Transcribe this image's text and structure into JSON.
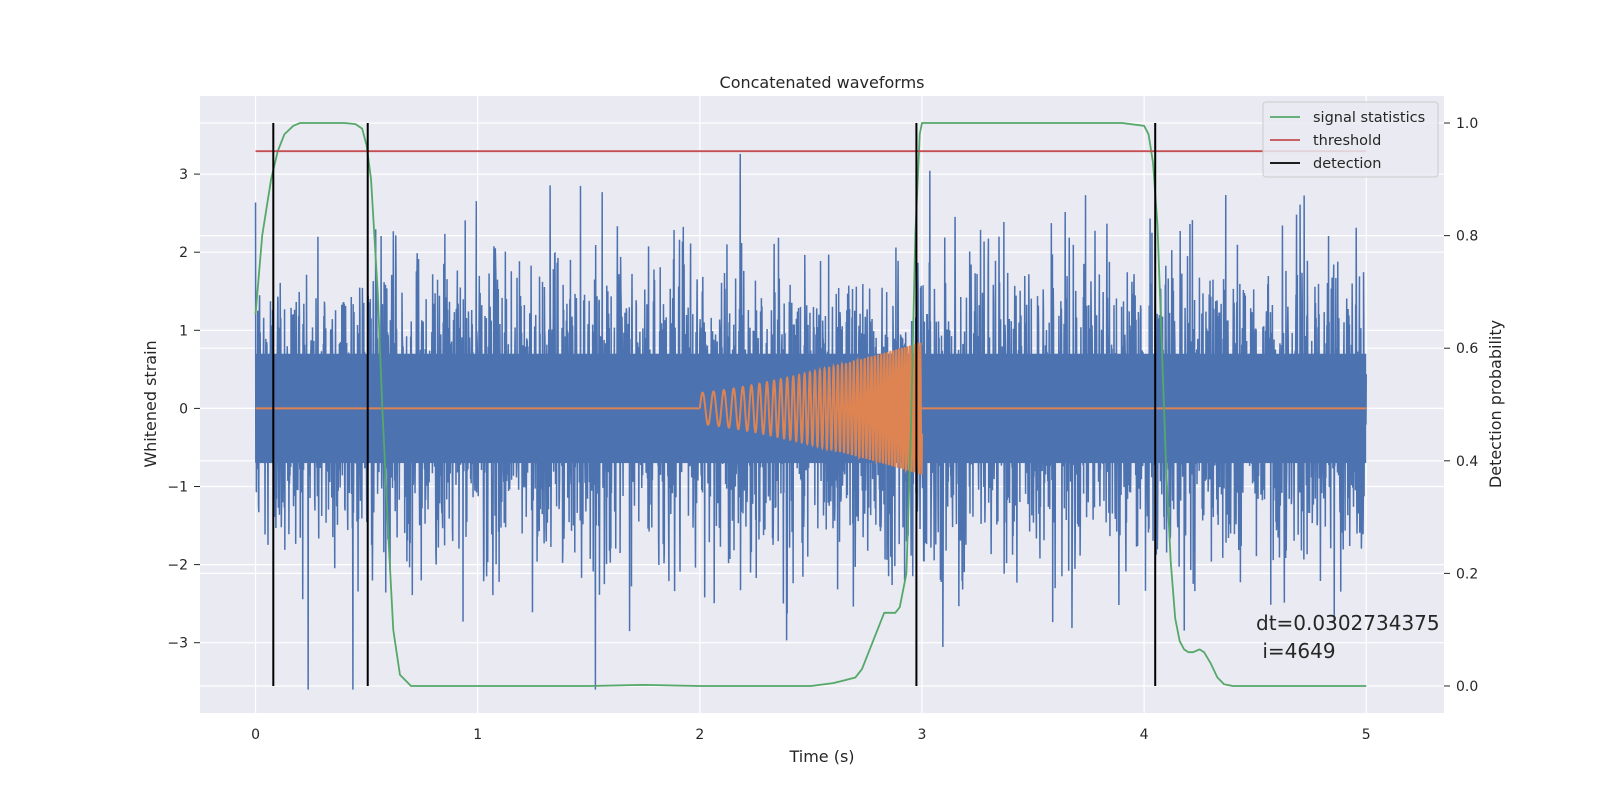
{
  "chart_data": {
    "type": "line",
    "title": "Concatenated waveforms",
    "xlabel": "Time (s)",
    "ylabel": "Whitened strain",
    "y2label": "Detection probability",
    "xlim": [
      -0.25,
      5.35
    ],
    "ylim": [
      -3.9,
      4.0
    ],
    "y2lim": [
      -0.048,
      1.048
    ],
    "x_ticks": [
      0,
      1,
      2,
      3,
      4,
      5
    ],
    "y_ticks": [
      -3,
      -2,
      -1,
      0,
      1,
      2,
      3
    ],
    "y2_ticks": [
      0.0,
      0.2,
      0.4,
      0.6,
      0.8,
      1.0
    ],
    "x_tick_labels": [
      "0",
      "1",
      "2",
      "3",
      "4",
      "5"
    ],
    "y_tick_labels": [
      "−3",
      "−2",
      "−1",
      "0",
      "1",
      "2",
      "3"
    ],
    "y2_tick_labels": [
      "0.0",
      "0.2",
      "0.4",
      "0.6",
      "0.8",
      "1.0"
    ],
    "grid": true,
    "legend_position": "top-right",
    "legend": [
      {
        "label": "signal statistics",
        "color": "#55a868"
      },
      {
        "label": "threshold",
        "color": "#c44e52"
      },
      {
        "label": "detection",
        "color": "#000000"
      }
    ],
    "series": [
      {
        "role": "noise",
        "color": "#4c72b0",
        "x_range": [
          0,
          5
        ],
        "core_amplitude": 0.7,
        "max_amplitude": 3.65,
        "min_amplitude": -3.6
      },
      {
        "role": "chirp",
        "color": "#dd8452",
        "flat_x": [
          0,
          5
        ],
        "flat_y": 0,
        "chirp_x_range": [
          2.0,
          3.0
        ],
        "amplitude_range": [
          0.2,
          0.85
        ],
        "frequency_range_hz": [
          20,
          90
        ]
      },
      {
        "name": "signal statistics",
        "color": "#55a868",
        "axis": "right",
        "x": [
          0.0,
          0.03,
          0.07,
          0.1,
          0.13,
          0.17,
          0.2,
          0.25,
          0.3,
          0.4,
          0.45,
          0.48,
          0.5,
          0.52,
          0.55,
          0.57,
          0.6,
          0.62,
          0.65,
          0.7,
          1.0,
          1.5,
          1.75,
          2.0,
          2.3,
          2.5,
          2.6,
          2.65,
          2.7,
          2.73,
          2.76,
          2.8,
          2.83,
          2.85,
          2.88,
          2.9,
          2.93,
          2.95,
          2.97,
          2.99,
          3.0,
          3.1,
          3.5,
          3.9,
          4.0,
          4.02,
          4.04,
          4.06,
          4.08,
          4.1,
          4.12,
          4.14,
          4.16,
          4.18,
          4.2,
          4.22,
          4.25,
          4.27,
          4.3,
          4.33,
          4.36,
          4.4,
          4.5,
          5.0
        ],
        "y": [
          0.66,
          0.8,
          0.9,
          0.95,
          0.98,
          0.995,
          1.0,
          1.0,
          1.0,
          1.0,
          0.998,
          0.99,
          0.96,
          0.9,
          0.7,
          0.5,
          0.25,
          0.1,
          0.02,
          0.0,
          0.0,
          0.0,
          0.002,
          0.0,
          0.0,
          0.0,
          0.005,
          0.01,
          0.015,
          0.03,
          0.06,
          0.1,
          0.13,
          0.13,
          0.13,
          0.14,
          0.2,
          0.45,
          0.8,
          0.98,
          1.0,
          1.0,
          1.0,
          1.0,
          0.995,
          0.98,
          0.93,
          0.82,
          0.6,
          0.38,
          0.22,
          0.12,
          0.08,
          0.065,
          0.06,
          0.06,
          0.065,
          0.06,
          0.04,
          0.015,
          0.003,
          0.0,
          0.0,
          0.0
        ]
      },
      {
        "name": "threshold",
        "color": "#c44e52",
        "axis": "right",
        "x": [
          0,
          5
        ],
        "y": [
          0.95,
          0.95
        ]
      }
    ],
    "detections": [
      {
        "x": 0.08,
        "y_range": [
          0,
          1
        ]
      },
      {
        "x": 0.505,
        "y_range": [
          0,
          1
        ]
      },
      {
        "x": 2.975,
        "y_range": [
          0,
          1
        ]
      },
      {
        "x": 4.05,
        "y_range": [
          0,
          1
        ]
      }
    ],
    "annotation": {
      "line1": "dt=0.0302734375",
      "line2": " i=4649"
    }
  }
}
